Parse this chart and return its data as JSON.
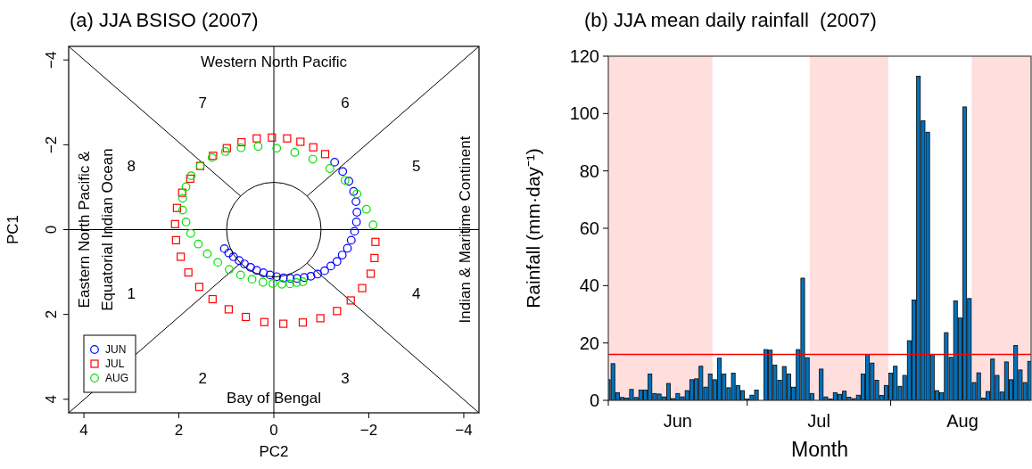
{
  "chart_data": [
    {
      "type": "scatter",
      "title": "(a) JJA BSISO (2007)",
      "xlabel": "PC2",
      "ylabel": "PC1",
      "xlim": [
        4.32,
        -4.32
      ],
      "ylim": [
        4.32,
        -4.32
      ],
      "xticks": [
        4,
        2,
        0,
        -2,
        -4
      ],
      "yticks": [
        -4,
        -2,
        0,
        2,
        4
      ],
      "grid": false,
      "legend": "bottom left",
      "series": [
        {
          "type": "line",
          "color": "#000000",
          "x": [
            4.32,
            0.7,
            0,
            -0.7,
            -4.32
          ],
          "values": [
            -4.32,
            -0.79,
            null,
            0.79,
            4.32
          ]
        },
        {
          "type": "line",
          "color": "#000000",
          "x": [
            -4.32,
            -0.7,
            0,
            0.7,
            4.32
          ],
          "values": [
            -4.32,
            -0.79,
            null,
            0.79,
            4.32
          ]
        },
        {
          "type": "line",
          "color": "#000000",
          "x": [
            0,
            0,
            0,
            0
          ],
          "values": [
            -4.32,
            -1.11,
            1.11,
            4.32
          ]
        },
        {
          "type": "line",
          "color": "#000000",
          "x": [
            4.32,
            1,
            -1,
            -4.32
          ],
          "values": [
            0,
            0,
            0,
            0
          ]
        },
        {
          "name": "JUN",
          "marker": "circle",
          "color": "#0000ff",
          "x": [
            -1.28,
            -1.45,
            -1.58,
            -1.68,
            -1.73,
            -1.75,
            -1.74,
            -1.7,
            -1.63,
            -1.55,
            -1.44,
            -1.33,
            -1.2,
            -1.07,
            -0.92,
            -0.78,
            -0.64,
            -0.49,
            -0.35,
            -0.2,
            -0.06,
            0.08,
            0.22,
            0.36,
            0.49,
            0.62,
            0.73,
            0.85,
            0.95,
            1.04
          ],
          "values": [
            -1.59,
            -1.37,
            -1.14,
            -0.9,
            -0.66,
            -0.41,
            -0.18,
            0.04,
            0.25,
            0.44,
            0.6,
            0.75,
            0.86,
            0.97,
            1.05,
            1.1,
            1.13,
            1.15,
            1.15,
            1.14,
            1.11,
            1.07,
            1.02,
            0.96,
            0.89,
            0.81,
            0.73,
            0.64,
            0.55,
            0.45
          ]
        },
        {
          "name": "JUL",
          "marker": "square",
          "color": "#ff0000",
          "x": [
            2.06,
            2.08,
            2.04,
            1.93,
            1.76,
            1.55,
            1.28,
            0.99,
            0.68,
            0.36,
            0.04,
            -0.28,
            -0.56,
            -0.83,
            -1.08,
            -2.14,
            -2.12,
            -2.04,
            -1.86,
            -1.62,
            -1.33,
            -0.98,
            -0.61,
            -0.2,
            0.2,
            0.59,
            0.95,
            1.29,
            1.57,
            1.8,
            1.96
          ],
          "values": [
            0.25,
            -0.13,
            -0.51,
            -0.87,
            -1.2,
            -1.5,
            -1.74,
            -1.92,
            -2.06,
            -2.15,
            -2.17,
            -2.15,
            -2.07,
            -1.94,
            -1.78,
            0.29,
            0.67,
            1.04,
            1.38,
            1.67,
            1.92,
            2.09,
            2.19,
            2.22,
            2.18,
            2.06,
            1.88,
            1.64,
            1.35,
            1.01,
            0.64
          ]
        },
        {
          "name": "AUG",
          "marker": "circle",
          "color": "#00e000",
          "x": [
            -2.09,
            -1.95,
            -1.75,
            -1.5,
            -1.18,
            -0.82,
            -0.44,
            -0.06,
            0.33,
            0.69,
            1.02,
            1.3,
            1.55,
            1.74,
            1.85,
            1.92,
            1.92,
            1.85,
            1.75,
            1.59,
            1.4,
            1.18,
            0.94,
            0.7,
            0.46,
            0.23,
            0.02,
            -0.17,
            -0.34,
            -0.48,
            -0.61
          ],
          "values": [
            -0.11,
            -0.48,
            -0.84,
            -1.16,
            -1.44,
            -1.66,
            -1.82,
            -1.92,
            -1.96,
            -1.93,
            -1.84,
            -1.7,
            -1.5,
            -1.27,
            -1.01,
            -0.74,
            -0.46,
            -0.18,
            0.09,
            0.34,
            0.57,
            0.77,
            0.94,
            1.07,
            1.17,
            1.24,
            1.27,
            1.29,
            1.28,
            1.25,
            1.23
          ]
        }
      ],
      "annotations": [
        "Western North Pacific",
        "Bay of Bengal",
        "Eastern North Pacific &",
        "Equatorial Indian Ocean",
        "Indian & Maritime Continent",
        "1",
        "2",
        "3",
        "4",
        "5",
        "6",
        "7",
        "8"
      ]
    },
    {
      "type": "bar",
      "title": "(b) JJA mean daily rainfall  (2007)",
      "xlabel": "Month",
      "ylabel": "Rainfall (mm·day⁻¹)",
      "xlim": [
        "2007-06-01",
        "2007-08-31T08:00"
      ],
      "ylim": [
        0,
        120
      ],
      "yticks": [
        0,
        20,
        40,
        60,
        80,
        100,
        120
      ],
      "xticks": [
        {
          "value": "2007-06-01",
          "label": null
        },
        {
          "value": "2007-06-16",
          "label": "Jun"
        },
        {
          "value": "2007-07-01",
          "label": null
        },
        {
          "value": "2007-07-16T12:00",
          "label": "Jul"
        },
        {
          "value": "2007-08-01",
          "label": null
        },
        {
          "value": "2007-08-16T12:00",
          "label": "Aug"
        }
      ],
      "x": [
        "2007-06-01",
        "2007-06-02",
        "2007-06-03",
        "2007-06-04",
        "2007-06-05",
        "2007-06-06",
        "2007-06-07",
        "2007-06-08",
        "2007-06-09",
        "2007-06-10",
        "2007-06-11",
        "2007-06-12",
        "2007-06-13",
        "2007-06-14",
        "2007-06-15",
        "2007-06-16",
        "2007-06-17",
        "2007-06-18",
        "2007-06-19",
        "2007-06-20",
        "2007-06-21",
        "2007-06-22",
        "2007-06-23",
        "2007-06-24",
        "2007-06-25",
        "2007-06-26",
        "2007-06-27",
        "2007-06-28",
        "2007-06-29",
        "2007-06-30",
        "2007-07-01",
        "2007-07-02",
        "2007-07-03",
        "2007-07-04",
        "2007-07-05",
        "2007-07-06",
        "2007-07-07",
        "2007-07-08",
        "2007-07-09",
        "2007-07-10",
        "2007-07-11",
        "2007-07-12",
        "2007-07-13",
        "2007-07-14",
        "2007-07-15",
        "2007-07-16",
        "2007-07-17",
        "2007-07-18",
        "2007-07-19",
        "2007-07-20",
        "2007-07-21",
        "2007-07-22",
        "2007-07-23",
        "2007-07-24",
        "2007-07-25",
        "2007-07-26",
        "2007-07-27",
        "2007-07-28",
        "2007-07-29",
        "2007-07-30",
        "2007-07-31",
        "2007-08-01",
        "2007-08-02",
        "2007-08-03",
        "2007-08-04",
        "2007-08-05",
        "2007-08-06",
        "2007-08-07",
        "2007-08-08",
        "2007-08-09",
        "2007-08-10",
        "2007-08-11",
        "2007-08-12",
        "2007-08-13",
        "2007-08-14",
        "2007-08-15",
        "2007-08-16",
        "2007-08-17",
        "2007-08-18",
        "2007-08-19",
        "2007-08-20",
        "2007-08-21",
        "2007-08-22",
        "2007-08-23",
        "2007-08-24",
        "2007-08-25",
        "2007-08-26",
        "2007-08-27",
        "2007-08-28",
        "2007-08-29",
        "2007-08-30",
        "2007-08-31"
      ],
      "values": [
        7.2,
        12.8,
        2.7,
        1.0,
        0.8,
        3.8,
        1.0,
        3.6,
        3.6,
        9.2,
        2.4,
        2.2,
        1.2,
        5.9,
        0.6,
        2.4,
        1.2,
        3.4,
        7.2,
        7.5,
        11.9,
        4.6,
        9.2,
        7.2,
        14.7,
        9.2,
        4.4,
        9.5,
        5.1,
        3.4,
        0.5,
        1.8,
        3.6,
        0,
        17.7,
        17.5,
        12.3,
        7.0,
        11.8,
        9.2,
        4.6,
        17.7,
        42.6,
        14.9,
        2.4,
        0,
        10.9,
        1.2,
        0.5,
        2.7,
        2.1,
        3.2,
        1.1,
        0.6,
        1.8,
        9.2,
        16.0,
        13.0,
        7.0,
        1.7,
        5.2,
        9.5,
        11.9,
        4.9,
        8.7,
        20.8,
        35.0,
        113,
        97.5,
        93.5,
        16.0,
        3.4,
        2.7,
        23.6,
        15.0,
        34.7,
        28.7,
        102.3,
        35.5,
        6.2,
        9.6,
        0.8,
        3.1,
        14.4,
        8.7,
        2.9,
        13.4,
        7.2,
        19.1,
        10.6,
        6.2,
        13.6
      ],
      "color": "#0072bd",
      "ref_lines": [
        {
          "axis": "y",
          "value": 16,
          "color": "#ff0000"
        }
      ],
      "bands": [
        {
          "axis": "x",
          "from": "2007-06-01",
          "to": "2007-06-23T12:00",
          "color": "#ffdede"
        },
        {
          "axis": "x",
          "from": "2007-07-14T12:00",
          "to": "2007-07-31T12:00",
          "color": "#ffdede"
        },
        {
          "axis": "x",
          "from": "2007-08-18T12:00",
          "to": "2007-08-31T08:00",
          "color": "#ffdede"
        }
      ]
    }
  ]
}
